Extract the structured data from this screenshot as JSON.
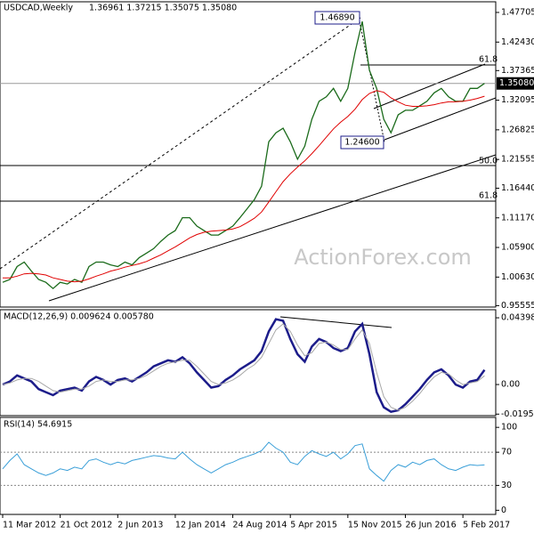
{
  "chart_data": [
    {
      "type": "line",
      "title": "USDCAD,Weekly",
      "subtitle": "1.36961 1.37215 1.35075 1.35080",
      "watermark": "ActionForex.com",
      "categories": [
        "11 Mar 2012",
        null,
        null,
        null,
        null,
        null,
        null,
        null,
        "21 Oct 2012",
        null,
        null,
        null,
        null,
        null,
        null,
        null,
        "2 Jun 2013",
        null,
        null,
        null,
        null,
        null,
        null,
        null,
        "12 Jan 2014",
        null,
        null,
        null,
        null,
        null,
        null,
        null,
        "24 Aug 2014",
        null,
        null,
        null,
        null,
        null,
        null,
        null,
        "5 Apr 2015",
        null,
        null,
        null,
        null,
        null,
        null,
        null,
        "15 Nov 2015",
        null,
        null,
        null,
        null,
        null,
        null,
        null,
        "26 Jun 2016",
        null,
        null,
        null,
        null,
        null,
        null,
        null,
        "5 Feb 2017",
        null,
        null,
        null
      ],
      "series": [
        {
          "color": "#1b6b1b",
          "values": [
            0.997,
            1.002,
            1.025,
            1.033,
            1.017,
            1.002,
            0.997,
            0.986,
            0.997,
            0.994,
            1.002,
            0.997,
            1.025,
            1.033,
            1.033,
            1.028,
            1.025,
            1.033,
            1.028,
            1.041,
            1.049,
            1.057,
            1.07,
            1.081,
            1.089,
            1.112,
            1.112,
            1.097,
            1.089,
            1.081,
            1.081,
            1.089,
            1.097,
            1.112,
            1.128,
            1.144,
            1.168,
            1.247,
            1.263,
            1.271,
            1.247,
            1.216,
            1.239,
            1.287,
            1.319,
            1.327,
            1.342,
            1.319,
            1.342,
            1.406,
            1.461,
            1.374,
            1.342,
            1.287,
            1.263,
            1.295,
            1.303,
            1.303,
            1.311,
            1.319,
            1.334,
            1.342,
            1.327,
            1.319,
            1.319,
            1.342,
            1.342,
            1.3508
          ]
        },
        {
          "color": "#e00000",
          "values": [
            1.005,
            1.005,
            1.008,
            1.012,
            1.013,
            1.012,
            1.01,
            1.005,
            1.002,
            0.999,
            0.998,
            0.999,
            1.003,
            1.008,
            1.012,
            1.017,
            1.02,
            1.024,
            1.027,
            1.03,
            1.034,
            1.04,
            1.046,
            1.053,
            1.06,
            1.068,
            1.076,
            1.082,
            1.086,
            1.088,
            1.089,
            1.09,
            1.092,
            1.096,
            1.103,
            1.111,
            1.122,
            1.14,
            1.158,
            1.176,
            1.19,
            1.202,
            1.213,
            1.226,
            1.24,
            1.255,
            1.27,
            1.282,
            1.292,
            1.305,
            1.322,
            1.333,
            1.338,
            1.335,
            1.325,
            1.318,
            1.312,
            1.31,
            1.31,
            1.311,
            1.313,
            1.316,
            1.318,
            1.318,
            1.319,
            1.321,
            1.324,
            1.328
          ]
        }
      ],
      "last_price": {
        "value": 1.3508,
        "label": "1.35080"
      },
      "annotations": [
        "1.46890",
        "1.24600",
        "61.8",
        "50.0",
        "61.8"
      ],
      "ylim": [
        0.953,
        1.496
      ],
      "yticks": [
        {
          "value": 1.47705,
          "label": "1.47705"
        },
        {
          "value": 1.4243,
          "label": "1.42430"
        },
        {
          "value": 1.37365,
          "label": "1.37365"
        },
        {
          "value": 1.32095,
          "label": "1.32095"
        },
        {
          "value": 1.26825,
          "label": "1.26825"
        },
        {
          "value": 1.21555,
          "label": "1.21555"
        },
        {
          "value": 1.1644,
          "label": "1.16440"
        },
        {
          "value": 1.1117,
          "label": "1.11170"
        },
        {
          "value": 1.059,
          "label": "1.05900"
        },
        {
          "value": 1.0063,
          "label": "1.00630"
        },
        {
          "value": 0.95555,
          "label": "0.95555"
        }
      ]
    },
    {
      "type": "line",
      "title": "MACD(12,26,9) 0.009624 0.005780",
      "series": [
        {
          "color": "#1c1c8a",
          "values": [
            0.0,
            0.002,
            0.006,
            0.004,
            0.002,
            -0.003,
            -0.005,
            -0.007,
            -0.004,
            -0.003,
            -0.002,
            -0.004,
            0.002,
            0.005,
            0.003,
            0.0,
            0.003,
            0.004,
            0.002,
            0.005,
            0.008,
            0.012,
            0.014,
            0.016,
            0.015,
            0.018,
            0.014,
            0.008,
            0.003,
            -0.002,
            -0.001,
            0.003,
            0.006,
            0.01,
            0.013,
            0.016,
            0.022,
            0.035,
            0.043,
            0.042,
            0.03,
            0.02,
            0.015,
            0.025,
            0.03,
            0.028,
            0.024,
            0.022,
            0.024,
            0.035,
            0.04,
            0.02,
            -0.005,
            -0.015,
            -0.018,
            -0.017,
            -0.013,
            -0.008,
            -0.003,
            0.003,
            0.008,
            0.01,
            0.006,
            0.0,
            -0.002,
            0.002,
            0.003,
            0.009624
          ]
        },
        {
          "color": "#a8a8a8",
          "values": [
            0.0,
            0.001,
            0.003,
            0.004,
            0.004,
            0.002,
            -0.001,
            -0.004,
            -0.005,
            -0.004,
            -0.003,
            -0.003,
            -0.001,
            0.002,
            0.003,
            0.002,
            0.002,
            0.003,
            0.003,
            0.004,
            0.006,
            0.009,
            0.012,
            0.014,
            0.015,
            0.016,
            0.016,
            0.012,
            0.007,
            0.002,
            0.0,
            0.001,
            0.003,
            0.006,
            0.01,
            0.013,
            0.018,
            0.027,
            0.036,
            0.04,
            0.035,
            0.026,
            0.019,
            0.021,
            0.027,
            0.028,
            0.026,
            0.023,
            0.023,
            0.03,
            0.036,
            0.027,
            0.008,
            -0.008,
            -0.015,
            -0.017,
            -0.015,
            -0.011,
            -0.006,
            0.0,
            0.005,
            0.008,
            0.007,
            0.003,
            0.0,
            0.001,
            0.002,
            0.00578
          ]
        }
      ],
      "ylim": [
        -0.0205,
        0.0493
      ],
      "yticks": [
        0.043983,
        {
          "value": 0,
          "label": "0.00"
        },
        -0.019501
      ]
    },
    {
      "type": "line",
      "title": "RSI(14) 54.6915",
      "series": [
        {
          "color": "#3a9fd8",
          "values": [
            50,
            60,
            68,
            55,
            50,
            45,
            42,
            45,
            50,
            48,
            52,
            50,
            60,
            62,
            58,
            55,
            58,
            56,
            60,
            62,
            64,
            66,
            65,
            63,
            62,
            70,
            62,
            55,
            50,
            45,
            50,
            55,
            58,
            62,
            65,
            68,
            72,
            82,
            75,
            70,
            58,
            55,
            65,
            72,
            68,
            65,
            70,
            62,
            68,
            78,
            80,
            50,
            42,
            35,
            48,
            55,
            52,
            58,
            55,
            60,
            62,
            55,
            50,
            48,
            52,
            55,
            54,
            54.6915
          ]
        }
      ],
      "ylim": [
        -5,
        112
      ],
      "yticks": [
        100,
        70,
        30,
        0
      ],
      "levels": [
        70,
        30
      ]
    }
  ]
}
